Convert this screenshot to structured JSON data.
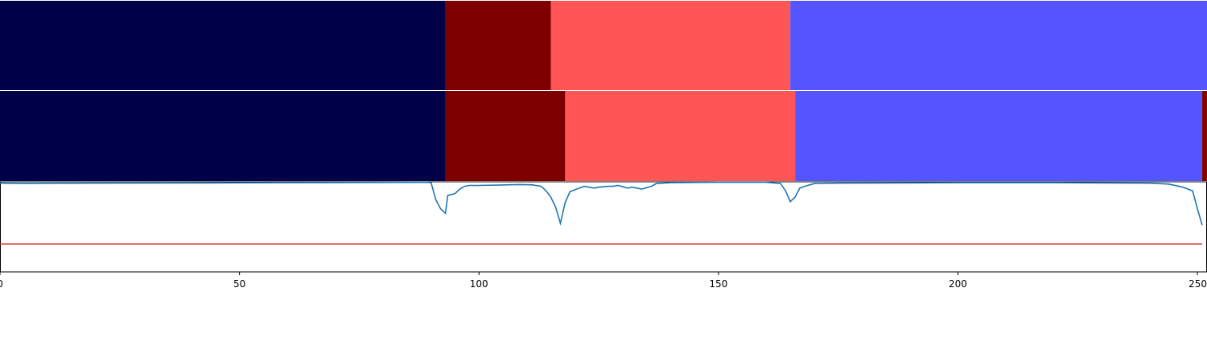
{
  "chart_data": {
    "type": "segmentation-timeline",
    "x_ticks": [
      "0",
      "50",
      "100",
      "150",
      "200",
      "250"
    ],
    "x_tick_values": [
      0,
      50,
      100,
      150,
      200,
      250
    ],
    "xlim": [
      0,
      252
    ],
    "colors": {
      "class_0": "#000048",
      "class_1": "#7f0000",
      "class_2": "#ff5555",
      "class_3": "#5555ff",
      "signal_line": "#1f77b4",
      "threshold_line": "#d62728"
    },
    "rows": [
      {
        "segments": [
          {
            "start": 0,
            "end": 93,
            "class": "class_0"
          },
          {
            "start": 93,
            "end": 115,
            "class": "class_1"
          },
          {
            "start": 115,
            "end": 165,
            "class": "class_2"
          },
          {
            "start": 165,
            "end": 252,
            "class": "class_3"
          }
        ]
      },
      {
        "segments": [
          {
            "start": 0,
            "end": 93,
            "class": "class_0"
          },
          {
            "start": 93,
            "end": 118,
            "class": "class_1"
          },
          {
            "start": 118,
            "end": 166,
            "class": "class_2"
          },
          {
            "start": 166,
            "end": 251,
            "class": "class_3"
          },
          {
            "start": 251,
            "end": 252,
            "class": "class_1"
          }
        ]
      }
    ],
    "line": {
      "ylim": [
        0,
        1
      ],
      "threshold": 0.31,
      "points": [
        [
          0,
          0.985
        ],
        [
          5,
          0.98
        ],
        [
          10,
          0.983
        ],
        [
          20,
          0.985
        ],
        [
          40,
          0.987
        ],
        [
          60,
          0.99
        ],
        [
          80,
          0.993
        ],
        [
          89,
          0.995
        ],
        [
          90,
          0.99
        ],
        [
          91,
          0.8
        ],
        [
          92,
          0.7
        ],
        [
          93,
          0.65
        ],
        [
          93.5,
          0.85
        ],
        [
          95,
          0.87
        ],
        [
          96,
          0.92
        ],
        [
          97,
          0.95
        ],
        [
          98,
          0.96
        ],
        [
          100,
          0.96
        ],
        [
          105,
          0.965
        ],
        [
          108,
          0.97
        ],
        [
          111,
          0.967
        ],
        [
          113,
          0.95
        ],
        [
          114,
          0.9
        ],
        [
          115,
          0.83
        ],
        [
          116,
          0.72
        ],
        [
          117,
          0.54
        ],
        [
          118,
          0.77
        ],
        [
          119,
          0.89
        ],
        [
          121,
          0.93
        ],
        [
          122,
          0.95
        ],
        [
          123,
          0.94
        ],
        [
          124,
          0.93
        ],
        [
          125,
          0.94
        ],
        [
          127,
          0.95
        ],
        [
          128,
          0.95
        ],
        [
          129,
          0.96
        ],
        [
          131,
          0.93
        ],
        [
          132,
          0.94
        ],
        [
          134,
          0.92
        ],
        [
          136,
          0.95
        ],
        [
          137,
          0.98
        ],
        [
          140,
          0.99
        ],
        [
          150,
          0.995
        ],
        [
          160,
          0.995
        ],
        [
          163,
          0.98
        ],
        [
          164,
          0.9
        ],
        [
          165,
          0.78
        ],
        [
          166,
          0.83
        ],
        [
          167,
          0.93
        ],
        [
          168,
          0.95
        ],
        [
          170,
          0.98
        ],
        [
          175,
          0.985
        ],
        [
          200,
          0.99
        ],
        [
          220,
          0.99
        ],
        [
          240,
          0.985
        ],
        [
          244,
          0.975
        ],
        [
          247,
          0.94
        ],
        [
          249,
          0.9
        ],
        [
          250,
          0.7
        ],
        [
          251,
          0.52
        ]
      ]
    }
  }
}
